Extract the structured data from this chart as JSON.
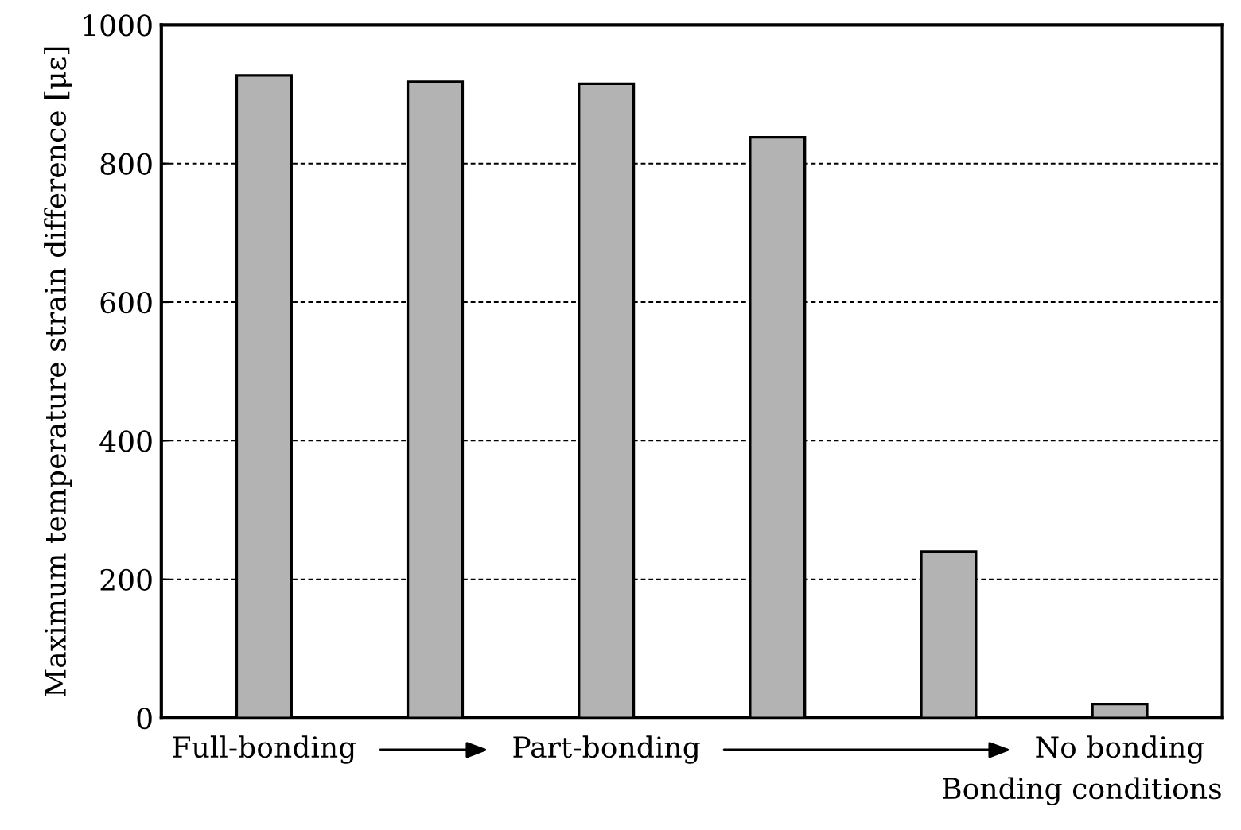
{
  "chart_data": {
    "type": "bar",
    "xlabel": "Bonding conditions",
    "ylabel": "Maximum temperature strain difference [με]",
    "categories": [
      "Full-bonding",
      null,
      "Part-bonding",
      null,
      null,
      "No bonding"
    ],
    "values": [
      927,
      918,
      915,
      838,
      240,
      20
    ],
    "color": "#b3b3b3",
    "ylim": [
      0,
      1000
    ],
    "yticks": [
      0,
      200,
      400,
      600,
      800,
      1000
    ],
    "grid": "y"
  }
}
